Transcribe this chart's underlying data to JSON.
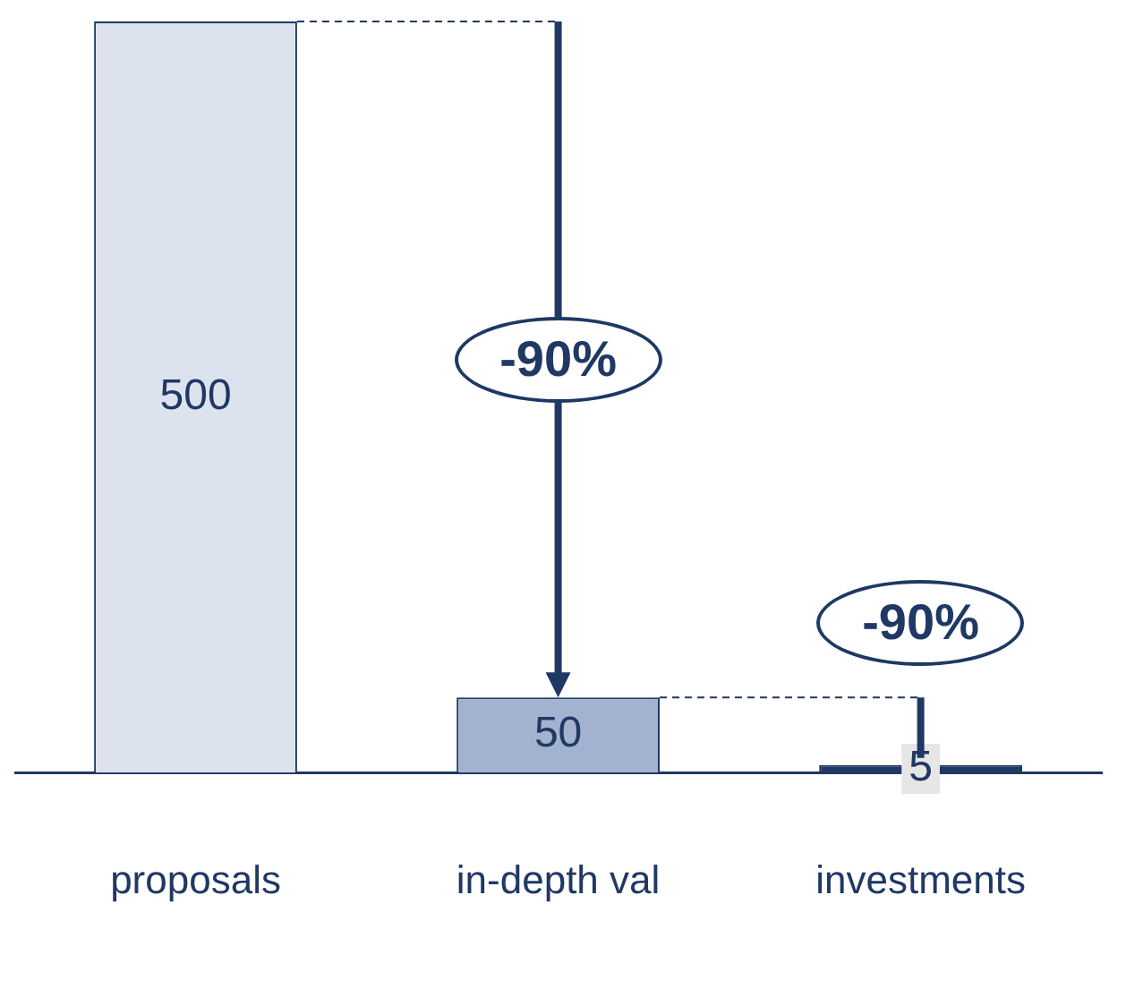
{
  "chart_data": {
    "type": "bar",
    "categories": [
      "proposals",
      "in-depth val",
      "investments"
    ],
    "values": [
      500,
      50,
      5
    ],
    "colors": [
      "#dde3ee",
      "#a3b3cf",
      "#1f3864"
    ],
    "data_labels": true,
    "annotations": [
      "-90%",
      "-90%"
    ]
  }
}
